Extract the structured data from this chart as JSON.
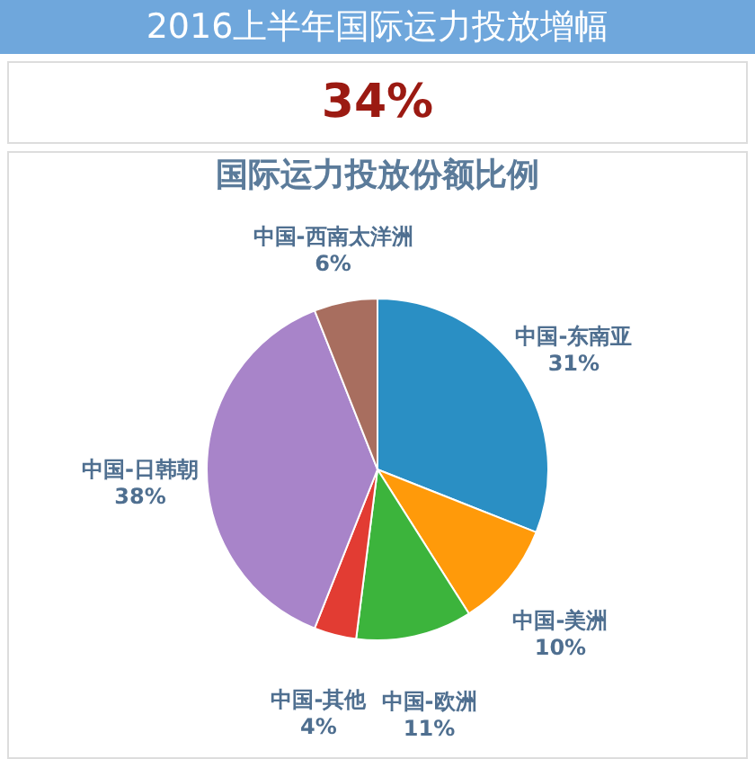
{
  "chart_data": {
    "type": "pie",
    "title": "国际运力投放份额比例",
    "annotations": [
      "2016上半年国际运力投放增幅",
      "34%"
    ],
    "categories": [
      "中国-东南亚",
      "中国-美洲",
      "中国-欧洲",
      "中国-其他",
      "中国-日韩朝",
      "中国-西南太洋洲"
    ],
    "values": [
      31,
      10,
      11,
      4,
      38,
      6
    ],
    "value_labels": [
      "31%",
      "10%",
      "11%",
      "4%",
      "38%",
      "6%"
    ],
    "colors": [
      "#2a8fc4",
      "#ff9a0a",
      "#3cb43c",
      "#e23c33",
      "#a884c9",
      "#a86e5f"
    ],
    "legend": false
  }
}
